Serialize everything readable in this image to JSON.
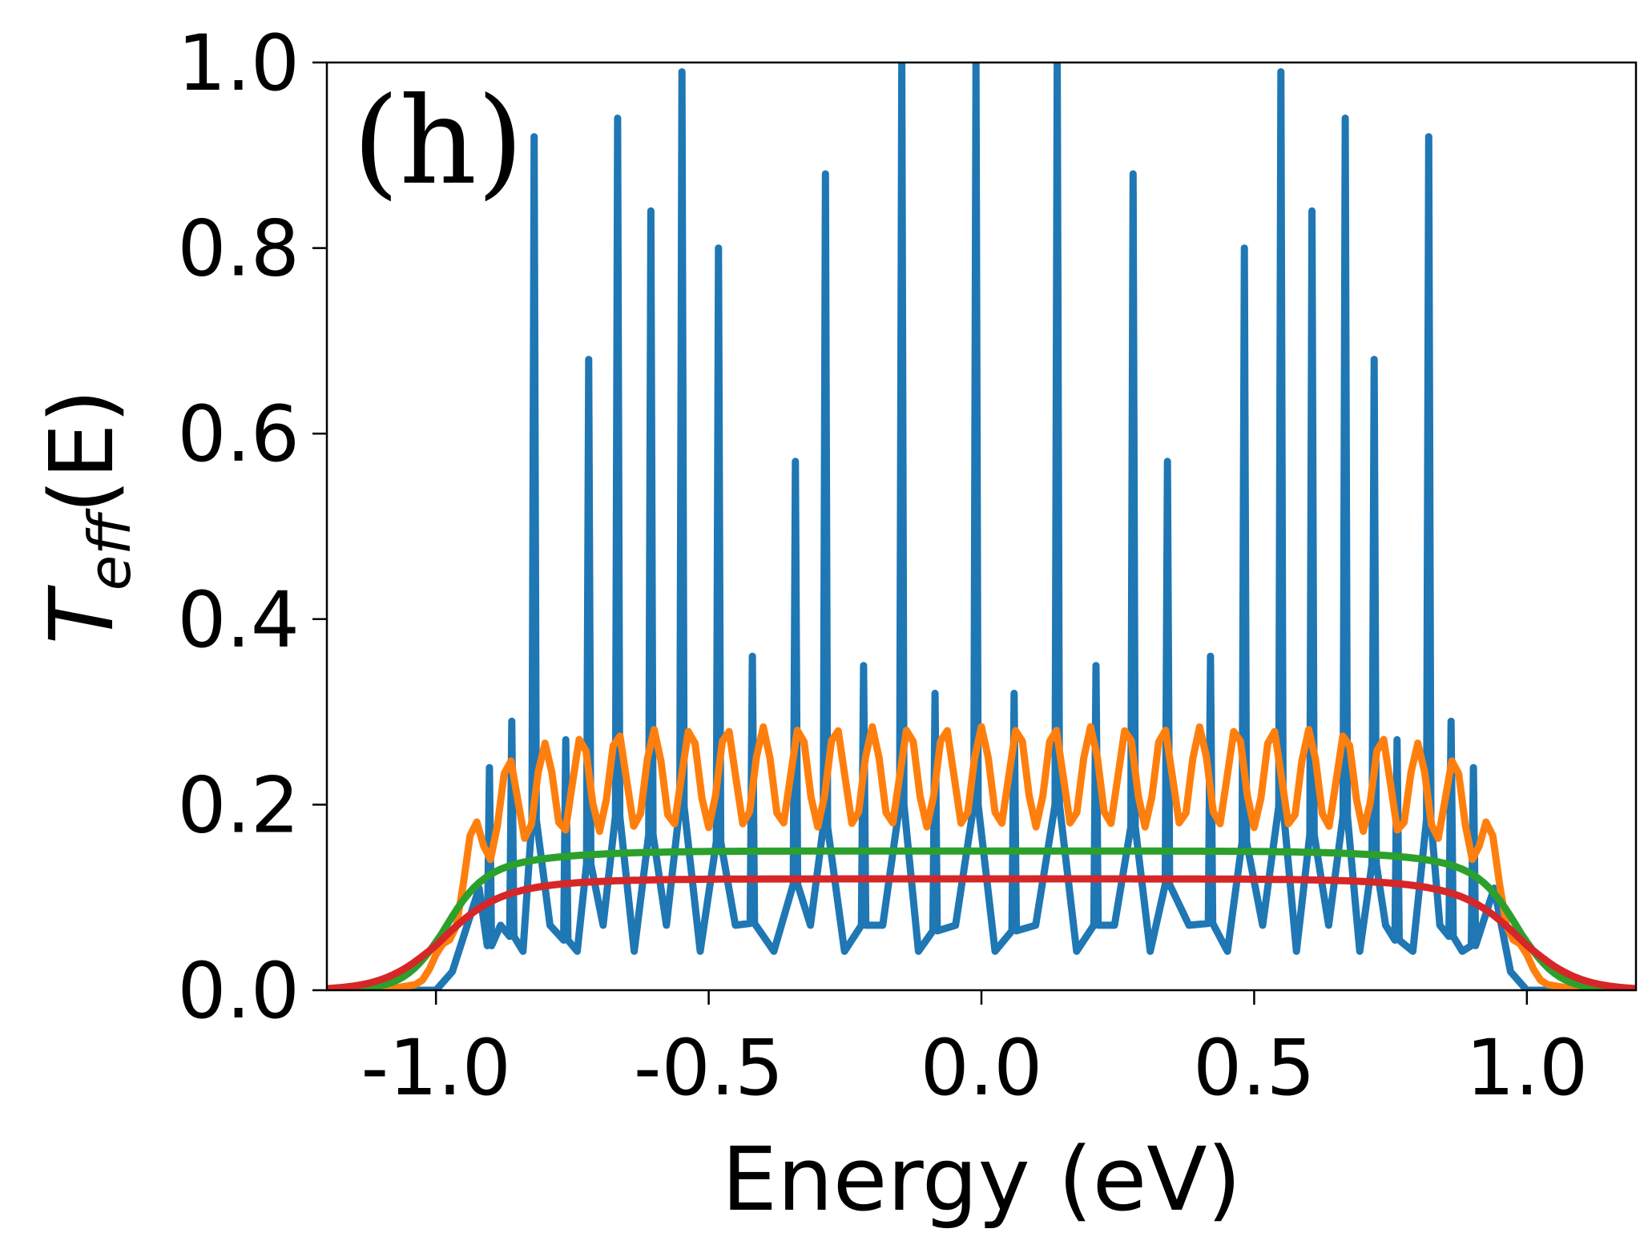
{
  "chart_data": {
    "type": "line",
    "panel_label": "(h)",
    "xlabel": "Energy (eV)",
    "ylabel_main": "T",
    "ylabel_sub": "eff",
    "ylabel_arg": "(E)",
    "xlim": [
      -1.2,
      1.2
    ],
    "ylim": [
      0.0,
      1.0
    ],
    "xticks": [
      -1.0,
      -0.5,
      0.0,
      0.5,
      1.0
    ],
    "xtick_labels": [
      "-1.0",
      "-0.5",
      "0.0",
      "0.5",
      "1.0"
    ],
    "yticks": [
      0.0,
      0.2,
      0.4,
      0.6,
      0.8,
      1.0
    ],
    "ytick_labels": [
      "0.0",
      "0.2",
      "0.4",
      "0.6",
      "0.8",
      "1.0"
    ],
    "series": [
      {
        "name": "blue",
        "color": "#1f77b4",
        "peak_positions": [
          -0.902,
          -0.861,
          -0.82,
          -0.762,
          -0.72,
          -0.667,
          -0.606,
          -0.549,
          -0.482,
          -0.42,
          -0.341,
          -0.286,
          -0.216,
          -0.146,
          -0.085,
          -0.01,
          0.06,
          0.139,
          0.21,
          0.278,
          0.341,
          0.42,
          0.482,
          0.549,
          0.606,
          0.667,
          0.72,
          0.762,
          0.82,
          0.861,
          0.902
        ],
        "peak_heights": [
          0.24,
          0.29,
          0.92,
          0.27,
          0.68,
          0.94,
          0.84,
          0.99,
          0.8,
          0.36,
          0.57,
          0.88,
          0.35,
          1.0,
          0.32,
          1.0,
          0.32,
          1.0,
          0.35,
          0.88,
          0.57,
          0.36,
          0.8,
          0.99,
          0.84,
          0.94,
          0.68,
          0.27,
          0.92,
          0.29,
          0.24
        ],
        "valley_level": 0.07,
        "band_edge": 1.0
      },
      {
        "name": "orange",
        "color": "#ff7f0e",
        "envelope_max": 0.23,
        "oscillation_amplitude": 0.06,
        "band_edge": 1.0
      },
      {
        "name": "green",
        "color": "#2ca02c",
        "plateau": 0.15,
        "band_edge": 1.0
      },
      {
        "name": "red",
        "color": "#d62728",
        "plateau": 0.12,
        "band_edge": 1.0
      }
    ]
  }
}
